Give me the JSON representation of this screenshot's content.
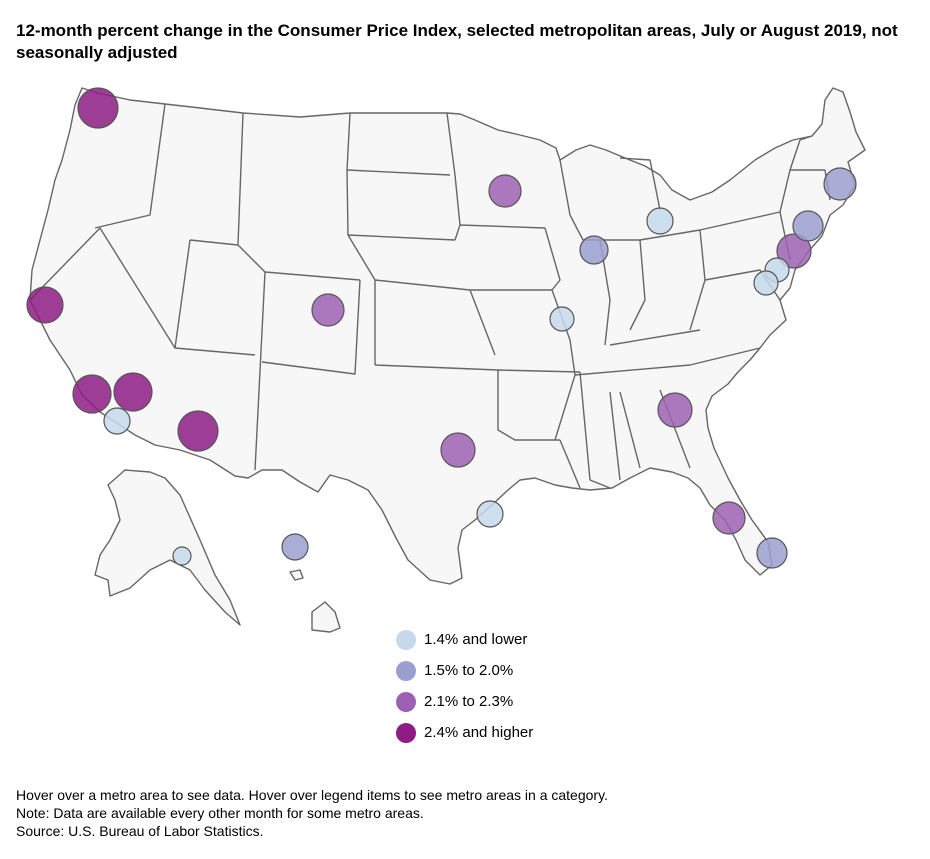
{
  "title": "12-month percent change in the Consumer Price Index, selected metropolitan areas, July or August 2019, not seasonally adjusted",
  "legend": [
    {
      "label": "1.4% and lower",
      "color": "#c6d9ec"
    },
    {
      "label": "1.5% to 2.0%",
      "color": "#9b9fcf"
    },
    {
      "label": "2.1% to 2.3%",
      "color": "#9d61b3"
    },
    {
      "label": "2.4% and higher",
      "color": "#8e1c84"
    }
  ],
  "metros": [
    {
      "category": 3
    },
    {
      "category": 3
    },
    {
      "category": 3
    },
    {
      "category": 3
    },
    {
      "category": 0
    },
    {
      "category": 3
    },
    {
      "category": 2
    },
    {
      "category": 2
    },
    {
      "category": 1
    },
    {
      "category": 0
    },
    {
      "category": 1
    },
    {
      "category": 0
    },
    {
      "category": 2
    },
    {
      "category": 0
    },
    {
      "category": 2
    },
    {
      "category": 2
    },
    {
      "category": 1
    },
    {
      "category": 1
    },
    {
      "category": 2
    },
    {
      "category": 0
    },
    {
      "category": 0
    },
    {
      "category": 0
    },
    {
      "category": 1
    }
  ],
  "notes": {
    "hover": "Hover over a metro area to see data. Hover over legend items to see metro areas in a category.",
    "note": "Note: Data are available every other month for some metro areas.",
    "source": "Source: U.S. Bureau of Labor Statistics."
  }
}
